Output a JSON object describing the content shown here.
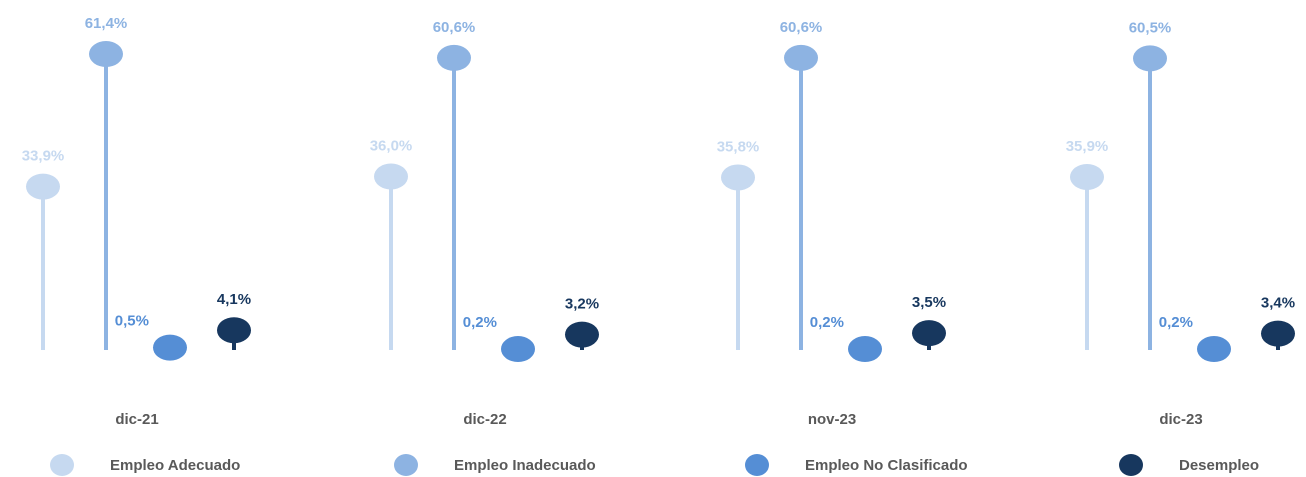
{
  "chart_data": {
    "type": "lollipop",
    "categories": [
      "dic-21",
      "dic-22",
      "nov-23",
      "dic-23"
    ],
    "series": [
      {
        "name": "Empleo Adecuado",
        "color": "#c6d9f0",
        "values": [
          33.9,
          36.0,
          35.8,
          35.9
        ],
        "value_labels": [
          "33,9%",
          "36,0%",
          "35,8%",
          "35,9%"
        ]
      },
      {
        "name": "Empleo Inadecuado",
        "color": "#8db3e2",
        "values": [
          61.4,
          60.6,
          60.6,
          60.5
        ],
        "value_labels": [
          "61,4%",
          "60,6%",
          "60,6%",
          "60,5%"
        ]
      },
      {
        "name": "Empleo No Clasificado",
        "color": "#558ed5",
        "values": [
          0.5,
          0.2,
          0.2,
          0.2
        ],
        "value_labels": [
          "0,5%",
          "0,2%",
          "0,2%",
          "0,2%"
        ]
      },
      {
        "name": "Desempleo",
        "color": "#17375e",
        "values": [
          4.1,
          3.2,
          3.5,
          3.4
        ],
        "value_labels": [
          "4,1%",
          "3,2%",
          "3,5%",
          "3,4%"
        ]
      }
    ],
    "legend": "bottom"
  }
}
